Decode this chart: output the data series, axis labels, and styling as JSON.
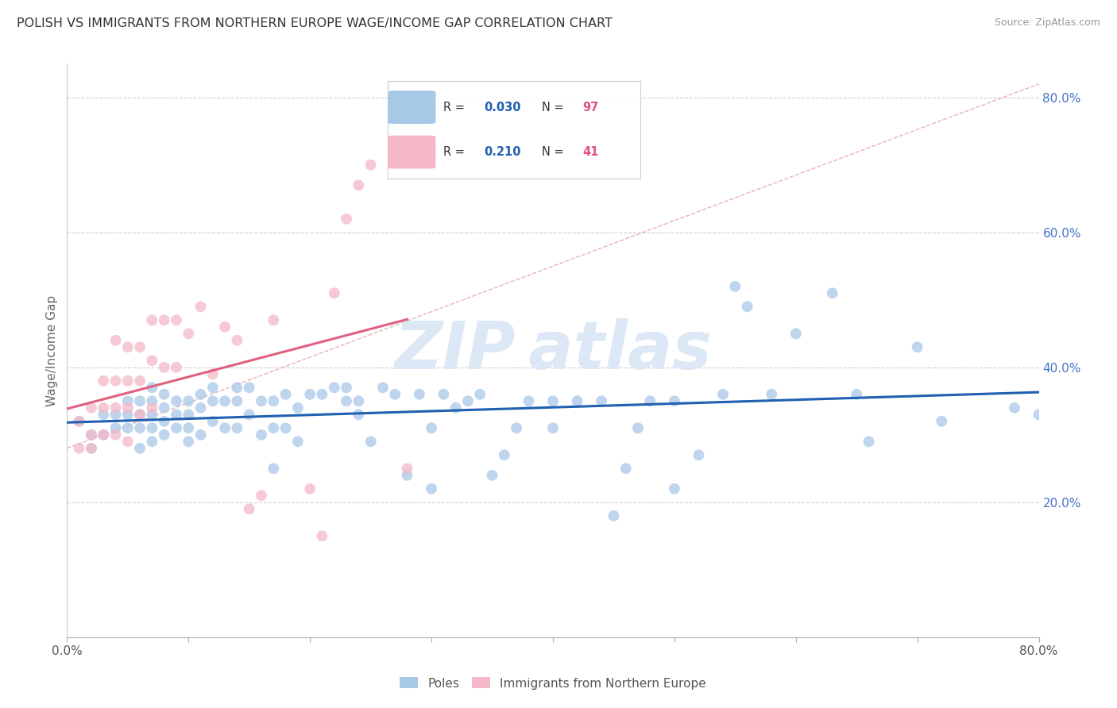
{
  "title": "POLISH VS IMMIGRANTS FROM NORTHERN EUROPE WAGE/INCOME GAP CORRELATION CHART",
  "source": "Source: ZipAtlas.com",
  "ylabel": "Wage/Income Gap",
  "xmin": 0.0,
  "xmax": 0.8,
  "ymin": 0.0,
  "ymax": 0.85,
  "xtick_left_label": "0.0%",
  "xtick_right_label": "80.0%",
  "yticks_right": [
    0.2,
    0.4,
    0.6,
    0.8
  ],
  "blue_R": 0.03,
  "blue_N": 97,
  "pink_R": 0.21,
  "pink_N": 41,
  "blue_color": "#a8c8e8",
  "pink_color": "#f5b8c8",
  "blue_line_color": "#2060b0",
  "pink_line_color": "#e06080",
  "dashed_line_color": "#e8b0b8",
  "blue_scatter_x": [
    0.01,
    0.02,
    0.02,
    0.03,
    0.03,
    0.04,
    0.04,
    0.05,
    0.05,
    0.05,
    0.06,
    0.06,
    0.06,
    0.06,
    0.07,
    0.07,
    0.07,
    0.07,
    0.07,
    0.08,
    0.08,
    0.08,
    0.08,
    0.09,
    0.09,
    0.09,
    0.1,
    0.1,
    0.1,
    0.1,
    0.11,
    0.11,
    0.11,
    0.12,
    0.12,
    0.12,
    0.13,
    0.13,
    0.14,
    0.14,
    0.14,
    0.15,
    0.15,
    0.16,
    0.16,
    0.17,
    0.17,
    0.17,
    0.18,
    0.18,
    0.19,
    0.19,
    0.2,
    0.21,
    0.22,
    0.23,
    0.23,
    0.24,
    0.24,
    0.25,
    0.26,
    0.27,
    0.28,
    0.29,
    0.3,
    0.3,
    0.31,
    0.32,
    0.33,
    0.34,
    0.35,
    0.36,
    0.37,
    0.38,
    0.4,
    0.4,
    0.42,
    0.44,
    0.45,
    0.46,
    0.47,
    0.48,
    0.5,
    0.5,
    0.52,
    0.54,
    0.55,
    0.56,
    0.58,
    0.6,
    0.63,
    0.65,
    0.66,
    0.7,
    0.72,
    0.78,
    0.8
  ],
  "blue_scatter_y": [
    0.32,
    0.28,
    0.3,
    0.3,
    0.33,
    0.31,
    0.33,
    0.31,
    0.33,
    0.35,
    0.28,
    0.31,
    0.33,
    0.35,
    0.29,
    0.31,
    0.33,
    0.35,
    0.37,
    0.3,
    0.32,
    0.34,
    0.36,
    0.31,
    0.33,
    0.35,
    0.29,
    0.31,
    0.33,
    0.35,
    0.3,
    0.34,
    0.36,
    0.32,
    0.35,
    0.37,
    0.31,
    0.35,
    0.31,
    0.35,
    0.37,
    0.33,
    0.37,
    0.3,
    0.35,
    0.25,
    0.31,
    0.35,
    0.31,
    0.36,
    0.29,
    0.34,
    0.36,
    0.36,
    0.37,
    0.35,
    0.37,
    0.33,
    0.35,
    0.29,
    0.37,
    0.36,
    0.24,
    0.36,
    0.22,
    0.31,
    0.36,
    0.34,
    0.35,
    0.36,
    0.24,
    0.27,
    0.31,
    0.35,
    0.35,
    0.31,
    0.35,
    0.35,
    0.18,
    0.25,
    0.31,
    0.35,
    0.22,
    0.35,
    0.27,
    0.36,
    0.52,
    0.49,
    0.36,
    0.45,
    0.51,
    0.36,
    0.29,
    0.43,
    0.32,
    0.34,
    0.33
  ],
  "pink_scatter_x": [
    0.01,
    0.01,
    0.02,
    0.02,
    0.02,
    0.03,
    0.03,
    0.03,
    0.04,
    0.04,
    0.04,
    0.04,
    0.05,
    0.05,
    0.05,
    0.05,
    0.06,
    0.06,
    0.06,
    0.07,
    0.07,
    0.07,
    0.08,
    0.08,
    0.09,
    0.09,
    0.1,
    0.11,
    0.12,
    0.13,
    0.14,
    0.15,
    0.16,
    0.17,
    0.2,
    0.21,
    0.22,
    0.23,
    0.24,
    0.25,
    0.28
  ],
  "pink_scatter_y": [
    0.28,
    0.32,
    0.28,
    0.3,
    0.34,
    0.3,
    0.34,
    0.38,
    0.3,
    0.34,
    0.38,
    0.44,
    0.29,
    0.34,
    0.38,
    0.43,
    0.33,
    0.38,
    0.43,
    0.34,
    0.41,
    0.47,
    0.4,
    0.47,
    0.4,
    0.47,
    0.45,
    0.49,
    0.39,
    0.46,
    0.44,
    0.19,
    0.21,
    0.47,
    0.22,
    0.15,
    0.51,
    0.62,
    0.67,
    0.7,
    0.25
  ],
  "pink_line_xmax": 0.28
}
